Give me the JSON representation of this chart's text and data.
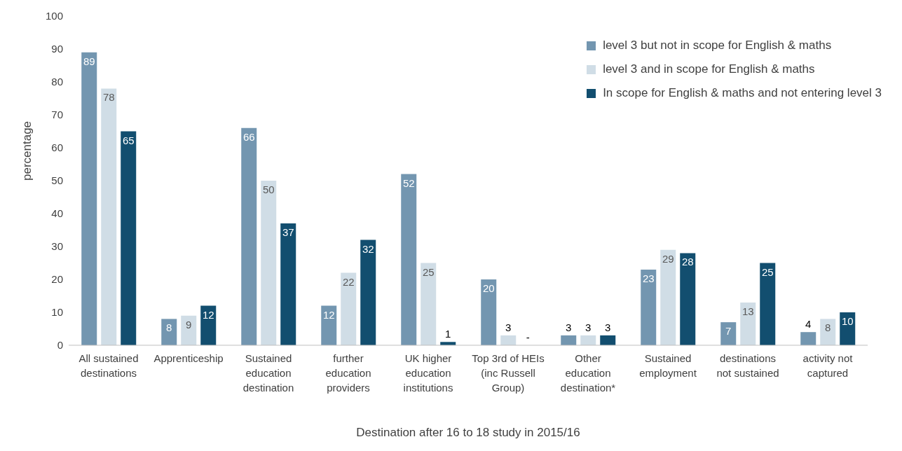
{
  "chart_data": {
    "type": "bar",
    "xlabel": "Destination after 16 to 18 study in 2015/16",
    "ylabel": "percentage",
    "categories": [
      "All sustained\ndestinations",
      "Apprenticeship",
      "Sustained\neducation\ndestination",
      "further\neducation\nproviders",
      "UK higher\neducation\ninstitutions",
      "Top 3rd of HEIs\n(inc Russell\nGroup)",
      "Other\neducation\ndestination*",
      "Sustained\nemployment",
      "destinations\nnot sustained",
      "activity not\ncaptured"
    ],
    "series": [
      {
        "name": "level 3 but not in scope for English & maths",
        "color": "#7396b0",
        "values": [
          89,
          8,
          66,
          12,
          52,
          20,
          3,
          23,
          7,
          4
        ]
      },
      {
        "name": "level 3 and in scope for English & maths",
        "color": "#d0dde6",
        "values": [
          78,
          9,
          50,
          22,
          25,
          3,
          3,
          29,
          13,
          8
        ]
      },
      {
        "name": "In scope for English & maths and not entering level 3",
        "color": "#124e6f",
        "values": [
          65,
          12,
          37,
          32,
          1,
          0,
          3,
          28,
          25,
          10
        ],
        "value_labels": [
          "65",
          "12",
          "37",
          "32",
          "1",
          "-",
          "3",
          "28",
          "25",
          "10"
        ]
      }
    ],
    "ylim": [
      0,
      100
    ],
    "yticks": [
      0,
      10,
      20,
      30,
      40,
      50,
      60,
      70,
      80,
      90,
      100
    ],
    "data_labels": true,
    "legend": "top right",
    "grid": false
  }
}
